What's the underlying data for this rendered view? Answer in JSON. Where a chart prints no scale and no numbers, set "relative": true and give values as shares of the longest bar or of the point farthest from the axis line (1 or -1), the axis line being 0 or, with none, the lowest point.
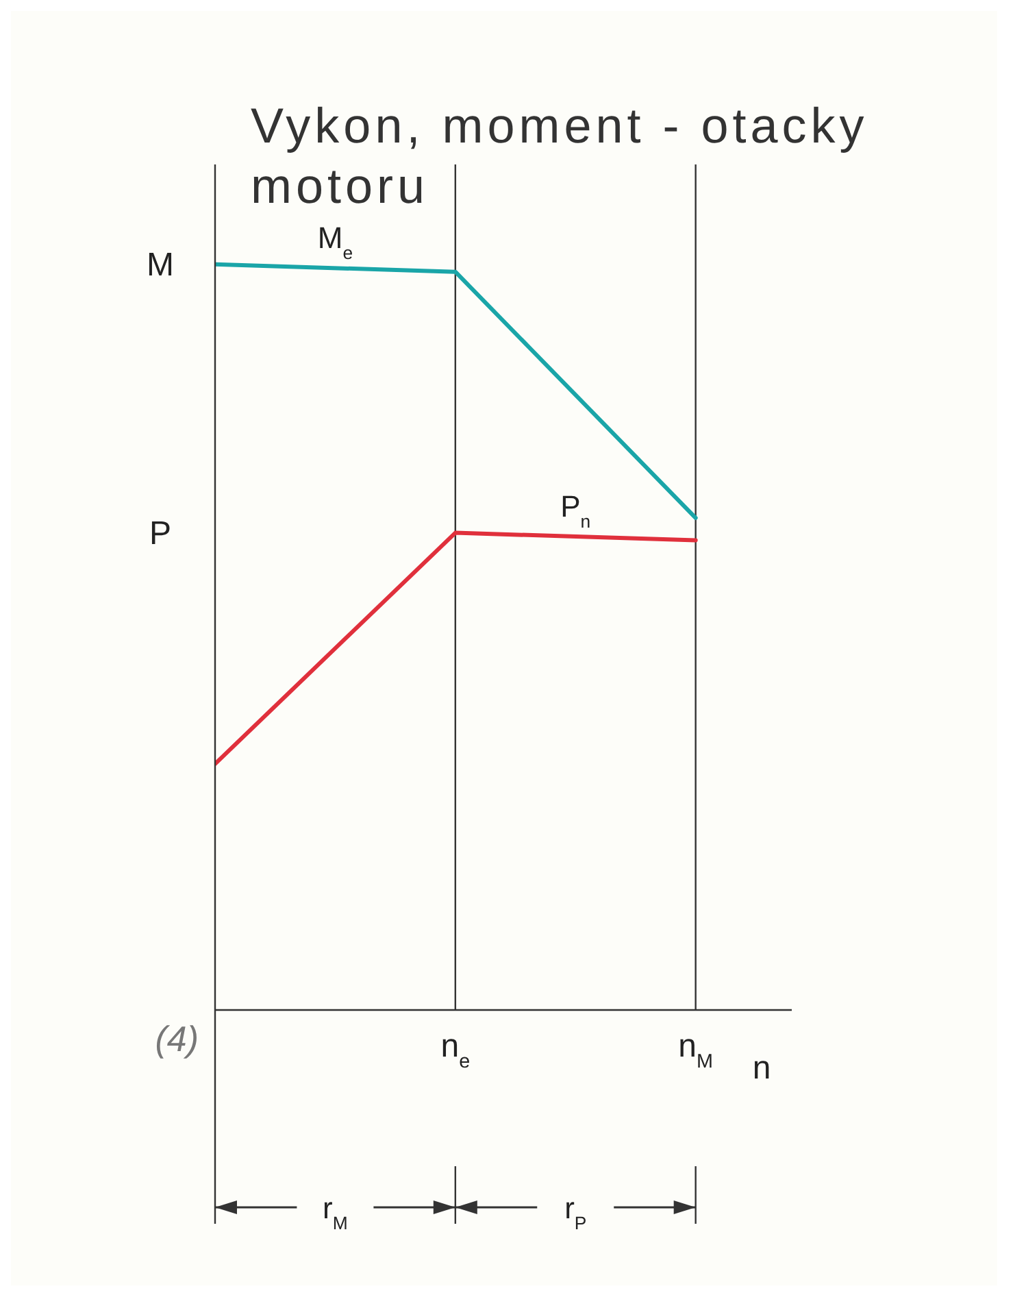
{
  "chart_data": {
    "type": "line",
    "title": "Vykon, moment - otacky motoru",
    "xlabel": "n",
    "relative": true,
    "categories": [
      null,
      "n$_{e}$",
      "n$_{M}$"
    ],
    "series": [
      {
        "name": "M$_{e}$",
        "color": "#1aa5a8",
        "values": [
          1,
          0.99,
          0.66
        ]
      },
      {
        "name": "P$_{n}$",
        "color": "#e0303c",
        "values": [
          0.33,
          0.64,
          0.63
        ]
      }
    ],
    "ref_lines": [
      {
        "axis": "x",
        "value": "n$_{e}$"
      },
      {
        "axis": "x",
        "value": "n$_{M}$"
      }
    ],
    "annotations": [
      "M",
      "P",
      "(4)",
      "r$_{M}$",
      "r$_{P}$"
    ],
    "grid": false,
    "legend": false,
    "marker": "none",
    "line_style": "solid"
  }
}
